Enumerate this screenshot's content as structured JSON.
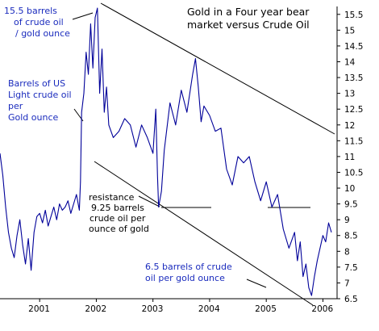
{
  "chart_data": {
    "type": "line",
    "title": "Gold in a Four year bear market versus Crude Oil",
    "title_lines": [
      "Gold in a Four year bear",
      "market versus Crude Oil"
    ],
    "xlabel": "",
    "ylabel": "Barrels of US Light crude oil per Gold ounce",
    "ylabel_lines": [
      "Barrels of US",
      "Light crude oil",
      "per",
      "Gold ounce"
    ],
    "grid": false,
    "legend": "none",
    "xlim": [
      2000.3,
      2006.25
    ],
    "ylim": [
      6.5,
      15.75
    ],
    "x_ticks": [
      2001,
      2002,
      2003,
      2004,
      2005,
      2006
    ],
    "x_tick_labels": [
      "2001",
      "2002",
      "2003",
      "2004",
      "2005",
      "2006"
    ],
    "y_ticks": [
      6.5,
      7,
      7.5,
      8,
      8.5,
      9,
      9.5,
      10,
      10.5,
      11,
      11.5,
      12,
      12.5,
      13,
      13.5,
      14,
      14.5,
      15,
      15.5
    ],
    "y_tick_labels": [
      "6.5",
      "7",
      "7.5",
      "8",
      "8.5",
      "9",
      "9.5",
      "10",
      "10.5",
      "11",
      "11.5",
      "12",
      "12.5",
      "13",
      "13.5",
      "14",
      "14.5",
      "15",
      "15.5"
    ],
    "series": [
      {
        "x": [
          2000.3,
          2000.35,
          2000.4,
          2000.45,
          2000.5,
          2000.55,
          2000.6,
          2000.65,
          2000.7,
          2000.75,
          2000.8,
          2000.85,
          2000.9,
          2000.95,
          2001.0,
          2001.05,
          2001.1,
          2001.15,
          2001.2,
          2001.25,
          2001.3,
          2001.35,
          2001.4,
          2001.45,
          2001.5,
          2001.55,
          2001.6,
          2001.65,
          2001.7,
          2001.72,
          2001.74,
          2001.78,
          2001.82,
          2001.86,
          2001.9,
          2001.94,
          2001.98,
          2002.02,
          2002.06,
          2002.1,
          2002.14,
          2002.18,
          2002.22,
          2002.3,
          2002.4,
          2002.5,
          2002.6,
          2002.7,
          2002.8,
          2002.9,
          2003.0,
          2003.05,
          2003.08,
          2003.1,
          2003.15,
          2003.2,
          2003.3,
          2003.4,
          2003.5,
          2003.6,
          2003.7,
          2003.75,
          2003.8,
          2003.85,
          2003.9,
          2004.0,
          2004.1,
          2004.2,
          2004.3,
          2004.4,
          2004.5,
          2004.6,
          2004.7,
          2004.8,
          2004.9,
          2005.0,
          2005.1,
          2005.2,
          2005.3,
          2005.4,
          2005.5,
          2005.55,
          2005.6,
          2005.65,
          2005.7,
          2005.75,
          2005.8,
          2005.85,
          2005.9,
          2005.95,
          2006.0,
          2006.05,
          2006.1,
          2006.15
        ],
        "y": [
          11.1,
          10.4,
          9.4,
          8.6,
          8.1,
          7.8,
          8.5,
          9.0,
          8.2,
          7.6,
          8.4,
          7.4,
          8.6,
          9.1,
          9.2,
          8.9,
          9.3,
          8.8,
          9.1,
          9.4,
          9.0,
          9.5,
          9.3,
          9.4,
          9.6,
          9.2,
          9.5,
          9.8,
          9.3,
          10.2,
          12.4,
          13.0,
          14.3,
          13.6,
          15.2,
          13.8,
          15.4,
          15.7,
          13.0,
          14.4,
          12.4,
          13.2,
          12.0,
          11.6,
          11.8,
          12.2,
          12.0,
          11.3,
          12.0,
          11.6,
          11.1,
          12.5,
          10.4,
          9.4,
          9.9,
          11.2,
          12.7,
          12.0,
          13.1,
          12.4,
          13.6,
          14.1,
          13.2,
          12.1,
          12.6,
          12.3,
          11.8,
          11.9,
          10.6,
          10.1,
          11.0,
          10.8,
          11.0,
          10.2,
          9.6,
          10.2,
          9.4,
          9.8,
          8.7,
          8.1,
          8.6,
          7.7,
          8.3,
          7.2,
          7.6,
          6.85,
          6.6,
          7.2,
          7.7,
          8.1,
          8.5,
          8.3,
          8.9,
          8.6
        ]
      }
    ],
    "annotations": [
      {
        "lines": [
          "15.5 barrels",
          "of crude oil",
          "/ gold ounce"
        ]
      },
      {
        "lines": [
          "resistance",
          "9.25 barrels",
          "crude oil per",
          "ounce of gold"
        ]
      },
      {
        "lines": [
          "6.5 barrels of crude",
          "oil per gold ounce"
        ]
      }
    ],
    "colors": {
      "line": "#000099",
      "annotation_text": "#1a2bbd",
      "trend_lines": "#000000"
    }
  }
}
